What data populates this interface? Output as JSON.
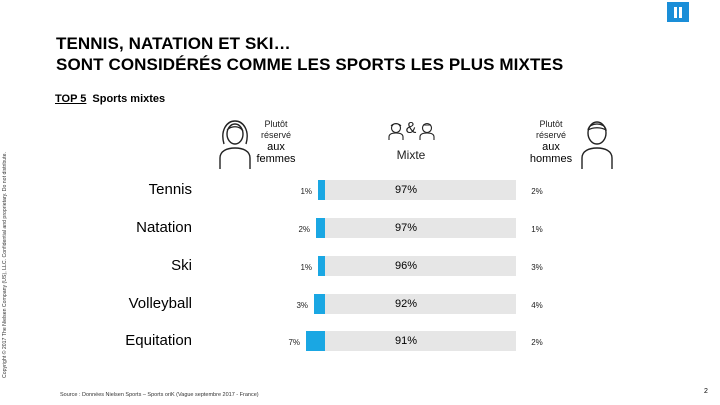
{
  "logo_name": "nielsen-logo-icon",
  "header": {
    "title_line1": "TENNIS, NATATION ET SKI…",
    "title_line2": "SONT CONSIDÉRÉS COMME LES SPORTS LES PLUS MIXTES",
    "subtitle_prefix": "TOP 5",
    "subtitle_text": "Sports mixtes"
  },
  "side_note": "Copyright © 2017 The Nielsen Company (US), LLC. Confidential and proprietary. Do not distribute.",
  "footer": {
    "source": "Source : Données Nielsen Sports – Sports oriK (Vague septembre 2017 - France)",
    "page_number": "2"
  },
  "chart_data": {
    "type": "bar",
    "title": "TOP 5 Sports mixtes",
    "columns": {
      "left": {
        "line1": "Plutôt",
        "line2": "réservé",
        "line3": "aux",
        "line4": "femmes"
      },
      "middle": {
        "symbol": "&",
        "label": "Mixte"
      },
      "right": {
        "line1": "Plutôt",
        "line2": "réservé",
        "line3": "aux",
        "line4": "hommes"
      }
    },
    "categories": [
      "Tennis",
      "Natation",
      "Ski",
      "Volleyball",
      "Equitation"
    ],
    "series": [
      {
        "name": "Plutôt réservé aux femmes",
        "values": [
          1,
          2,
          1,
          3,
          7
        ],
        "labels": [
          "1%",
          "2%",
          "1%",
          "3%",
          "7%"
        ]
      },
      {
        "name": "Mixte",
        "values": [
          97,
          97,
          96,
          92,
          91
        ],
        "labels": [
          "97%",
          "97%",
          "96%",
          "92%",
          "91%"
        ]
      },
      {
        "name": "Plutôt réservé aux hommes",
        "values": [
          2,
          1,
          3,
          4,
          2
        ],
        "labels": [
          "2%",
          "1%",
          "3%",
          "4%",
          "2%"
        ]
      }
    ],
    "colors": {
      "accent": "#1aa7e3",
      "track": "#e6e6e6"
    }
  }
}
